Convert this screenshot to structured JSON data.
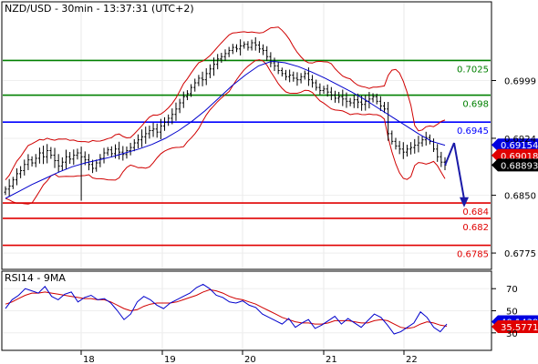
{
  "header": {
    "title": "NZD/USD - 30min - 13:37:31 (UTC+2)"
  },
  "indicator": {
    "title": "RSI14 - 9MA"
  },
  "chart_data": [
    {
      "type": "candlestick",
      "title": "NZD/USD - 30min - 13:37:31 (UTC+2)",
      "y_ticks": [
        "0.6999",
        "0.6924",
        "0.6850",
        "0.6775"
      ],
      "x_ticks": [
        "18",
        "19",
        "20",
        "21",
        "22"
      ],
      "ylim": [
        0.6755,
        0.71
      ],
      "levels": [
        {
          "label": "0.7025",
          "value": 0.7025,
          "color": "#008000"
        },
        {
          "label": "0.698",
          "value": 0.698,
          "color": "#008000"
        },
        {
          "label": "0.6945",
          "value": 0.6945,
          "color": "#0000ff"
        },
        {
          "label": "0.684",
          "value": 0.684,
          "color": "#e00000"
        },
        {
          "label": "0.682",
          "value": 0.682,
          "color": "#e00000"
        },
        {
          "label": "0.6785",
          "value": 0.6785,
          "color": "#e00000"
        }
      ],
      "tags": [
        {
          "label": "0.69154",
          "value": 0.69154,
          "color": "#0000e0"
        },
        {
          "label": "0.69018",
          "value": 0.69018,
          "color": "#e00000"
        },
        {
          "label": "0.68893",
          "value": 0.68893,
          "color": "#000000"
        }
      ],
      "price_series": [
        0.6858,
        0.6862,
        0.687,
        0.6878,
        0.6882,
        0.689,
        0.6896,
        0.6892,
        0.6898,
        0.6905,
        0.69,
        0.6908,
        0.6902,
        0.6895,
        0.6888,
        0.6893,
        0.69,
        0.6897,
        0.6902,
        0.6905,
        0.69,
        0.6896,
        0.689,
        0.6885,
        0.6892,
        0.6898,
        0.6905,
        0.6909,
        0.6904,
        0.691,
        0.6906,
        0.6903,
        0.6908,
        0.6912,
        0.6918,
        0.6922,
        0.6926,
        0.693,
        0.6934,
        0.6936,
        0.6932,
        0.694,
        0.6945,
        0.695,
        0.6955,
        0.6962,
        0.697,
        0.6978,
        0.6982,
        0.699,
        0.6996,
        0.7002,
        0.7,
        0.7008,
        0.7014,
        0.702,
        0.7027,
        0.703,
        0.7034,
        0.7038,
        0.7042,
        0.704,
        0.7044,
        0.7046,
        0.7042,
        0.7048,
        0.7045,
        0.704,
        0.7038,
        0.703,
        0.7022,
        0.7018,
        0.7012,
        0.7008,
        0.7004,
        0.7006,
        0.7002,
        0.7,
        0.7004,
        0.7008,
        0.7,
        0.6996,
        0.699,
        0.6986,
        0.6988,
        0.6984,
        0.698,
        0.6976,
        0.6978,
        0.6975,
        0.6972,
        0.697,
        0.6974,
        0.6971,
        0.6968,
        0.6972,
        0.6975,
        0.6978,
        0.6972,
        0.6966,
        0.6962,
        0.693,
        0.692,
        0.6914,
        0.691,
        0.6906,
        0.691,
        0.6912,
        0.6915,
        0.6918,
        0.6922,
        0.6925,
        0.692,
        0.691,
        0.69,
        0.6893,
        0.6889
      ],
      "projection": {
        "from": 0.6918,
        "to": 0.6838
      },
      "ma_blue": [
        0.6846,
        0.6855,
        0.6864,
        0.6872,
        0.688,
        0.6887,
        0.6892,
        0.6896,
        0.69,
        0.6905,
        0.691,
        0.6916,
        0.6924,
        0.6934,
        0.6946,
        0.696,
        0.6976,
        0.6992,
        0.7006,
        0.7018,
        0.7024,
        0.7022,
        0.7017,
        0.701,
        0.7002,
        0.6993,
        0.6984,
        0.6974,
        0.6963,
        0.6952,
        0.6941,
        0.693,
        0.692,
        0.6915
      ],
      "rsi": {
        "y_ticks": [
          "70",
          "50",
          "30"
        ],
        "ylim": [
          15,
          85
        ],
        "tags": [
          {
            "label": "40.1439",
            "value": 40.1439,
            "color": "#0000e0"
          },
          {
            "label": "35.5771",
            "value": 35.5771,
            "color": "#e00000"
          }
        ],
        "rsi_series": [
          52,
          60,
          64,
          70,
          68,
          66,
          72,
          63,
          60,
          65,
          67,
          58,
          62,
          64,
          60,
          61,
          57,
          50,
          42,
          47,
          58,
          63,
          60,
          55,
          52,
          57,
          60,
          63,
          66,
          71,
          74,
          70,
          64,
          62,
          58,
          57,
          59,
          55,
          53,
          47,
          44,
          41,
          38,
          43,
          35,
          39,
          42,
          34,
          37,
          41,
          45,
          38,
          43,
          39,
          35,
          41,
          47,
          44,
          37,
          29,
          31,
          35,
          39,
          49,
          44,
          35,
          31,
          38
        ],
        "ma_series": [
          56,
          58,
          61,
          64,
          66,
          66,
          67,
          66,
          65,
          64,
          63,
          62,
          61,
          61,
          60,
          60,
          58,
          55,
          52,
          50,
          51,
          54,
          56,
          57,
          57,
          57,
          58,
          60,
          62,
          64,
          67,
          69,
          68,
          66,
          63,
          61,
          60,
          58,
          56,
          53,
          50,
          47,
          44,
          42,
          40,
          39,
          39,
          38,
          38,
          39,
          41,
          41,
          41,
          40,
          39,
          39,
          41,
          42,
          41,
          38,
          35,
          34,
          35,
          38,
          40,
          39,
          37,
          36
        ]
      }
    }
  ]
}
